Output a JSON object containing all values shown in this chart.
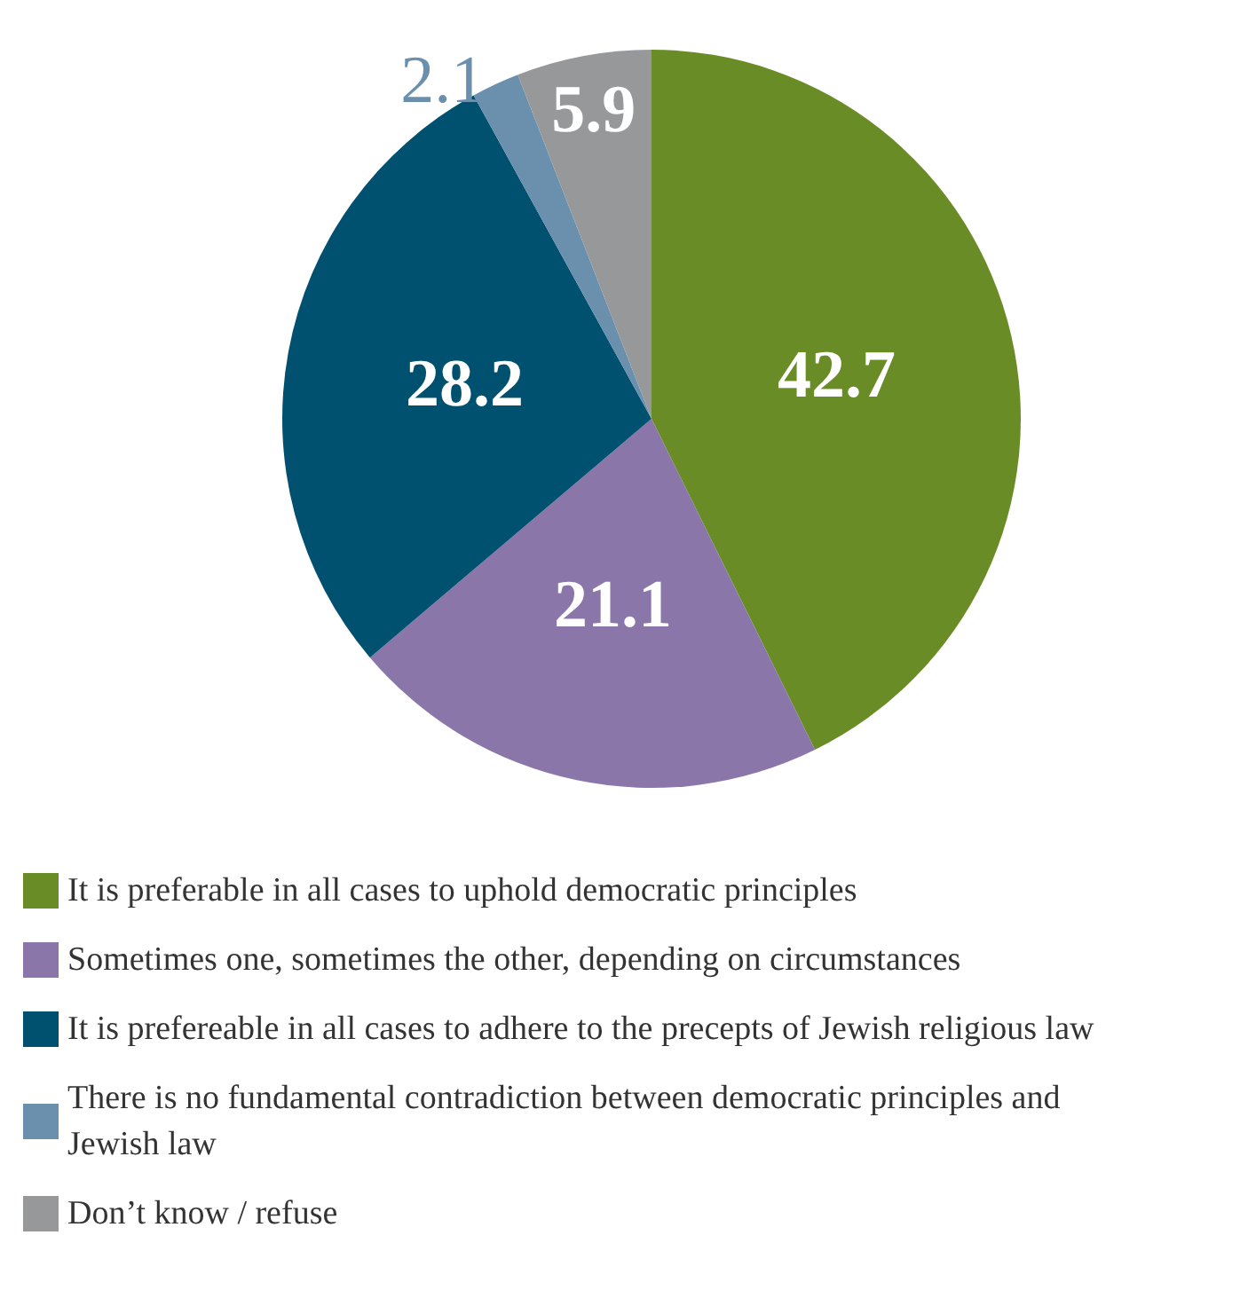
{
  "chart_data": {
    "type": "pie",
    "categories": [
      "It is preferable in all cases to uphold democratic principles",
      "Sometimes one, sometimes the other, depending on circumstances",
      "It is prefereable in all cases to adhere to the precepts of Jewish religious law",
      "There is no fundamental contradiction between democratic principles and Jewish law",
      "Don’t know / refuse"
    ],
    "values": [
      42.7,
      21.1,
      28.2,
      2.1,
      5.9
    ],
    "colors": [
      "#6a8c26",
      "#8a76a8",
      "#00506f",
      "#6a90ad",
      "#97989a"
    ],
    "data_labels": true,
    "legend": "bottom"
  }
}
